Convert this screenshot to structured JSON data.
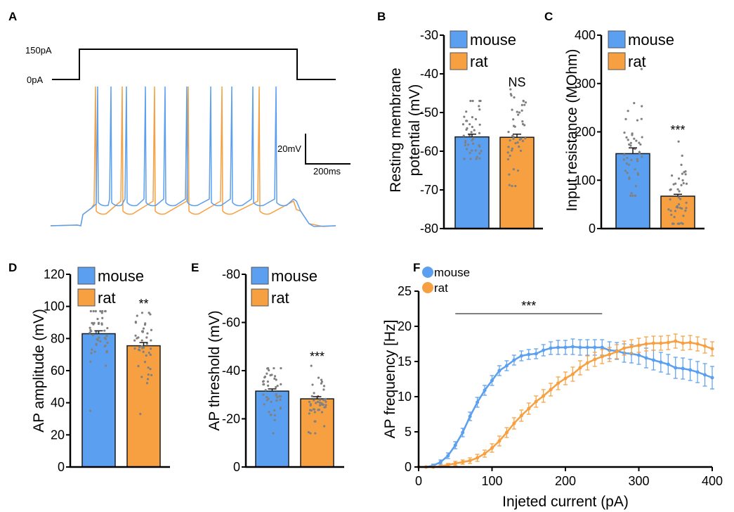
{
  "colors": {
    "mouse": "#5a9ff0",
    "rat": "#f7a041",
    "dots": "#808080",
    "axis": "#000000"
  },
  "panel_labels": {
    "A": "A",
    "B": "B",
    "C": "C",
    "D": "D",
    "E": "E",
    "F": "F"
  },
  "panel_a": {
    "stim_high_label": "150pA",
    "stim_low_label": "0pA",
    "scale_v_label": "20mV",
    "scale_t_label": "200ms"
  },
  "chart_data": [
    {
      "id": "B",
      "type": "bar",
      "ylabel": [
        "Resting membrane",
        "potential (mV)"
      ],
      "ylim": [
        -80,
        -30
      ],
      "yticks": [
        -80,
        -70,
        -60,
        -50,
        -40,
        -30
      ],
      "categories": [
        "mouse",
        "rat"
      ],
      "values": [
        -56.3,
        -56.4
      ],
      "sem": [
        0.7,
        0.8
      ],
      "annotation": "NS",
      "legend": [
        "mouse",
        "rat"
      ],
      "legend_position": "top-left"
    },
    {
      "id": "C",
      "type": "bar",
      "ylabel": [
        "Input resistance (MOhm)"
      ],
      "ylim": [
        0,
        400
      ],
      "yticks": [
        0,
        100,
        200,
        300,
        400
      ],
      "categories": [
        "mouse",
        "rat"
      ],
      "values": [
        155,
        67
      ],
      "sem": [
        12,
        4
      ],
      "annotation": "***",
      "legend": [
        "mouse",
        "rat"
      ],
      "legend_position": "top-left"
    },
    {
      "id": "D",
      "type": "bar",
      "ylabel": [
        "AP amplitude (mV)"
      ],
      "ylim": [
        0,
        120
      ],
      "yticks": [
        0,
        20,
        40,
        60,
        80,
        100,
        120
      ],
      "categories": [
        "mouse",
        "rat"
      ],
      "values": [
        83,
        75.5
      ],
      "sem": [
        1.8,
        2.0
      ],
      "annotation": "**",
      "legend": [
        "mouse",
        "rat"
      ],
      "legend_position": "top-left"
    },
    {
      "id": "E",
      "type": "bar",
      "ylabel": [
        "AP threshold (mV)"
      ],
      "ylim": [
        0,
        -80
      ],
      "yticks": [
        0,
        -20,
        -40,
        -60,
        -80
      ],
      "categories": [
        "mouse",
        "rat"
      ],
      "values": [
        -31.5,
        -28.3
      ],
      "sem": [
        0.9,
        0.9
      ],
      "annotation": "***",
      "legend": [
        "mouse",
        "rat"
      ],
      "legend_position": "top-left"
    },
    {
      "id": "F",
      "type": "line",
      "xlabel": "Injeted current (pA)",
      "ylabel": "AP frequency [Hz]",
      "xlim": [
        0,
        400
      ],
      "ylim": [
        0,
        25
      ],
      "xticks": [
        0,
        100,
        200,
        300,
        400
      ],
      "yticks": [
        0,
        5,
        10,
        15,
        20,
        25
      ],
      "x": [
        0,
        10,
        20,
        30,
        40,
        50,
        60,
        70,
        80,
        90,
        100,
        110,
        120,
        130,
        140,
        150,
        160,
        170,
        180,
        190,
        200,
        210,
        220,
        230,
        240,
        250,
        260,
        270,
        280,
        290,
        300,
        310,
        320,
        330,
        340,
        350,
        360,
        370,
        380,
        390,
        400
      ],
      "series": [
        {
          "name": "mouse",
          "values": [
            0,
            0,
            0.2,
            0.7,
            1.6,
            3.1,
            4.9,
            7.2,
            9.2,
            10.9,
            12.3,
            13.7,
            14.4,
            15.2,
            15.8,
            16.0,
            16.1,
            16.6,
            16.9,
            17.0,
            17.0,
            17.1,
            17.0,
            17.0,
            17.0,
            17.0,
            16.6,
            16.5,
            16.2,
            16.1,
            15.9,
            15.5,
            15.2,
            14.9,
            14.6,
            14.1,
            14.0,
            13.8,
            13.5,
            13.1,
            12.7
          ],
          "sem": [
            0,
            0,
            0.2,
            0.3,
            0.4,
            0.5,
            0.6,
            0.6,
            0.7,
            0.7,
            0.7,
            0.7,
            0.7,
            0.7,
            0.7,
            0.7,
            0.7,
            0.8,
            0.9,
            1.0,
            1.0,
            1.1,
            1.1,
            1.1,
            1.1,
            1.1,
            1.2,
            1.2,
            1.3,
            1.3,
            1.3,
            1.4,
            1.4,
            1.4,
            1.4,
            1.5,
            1.5,
            1.5,
            1.5,
            1.6,
            1.6
          ]
        },
        {
          "name": "rat",
          "values": [
            0,
            0,
            0,
            0.1,
            0.3,
            0.5,
            0.7,
            0.9,
            1.3,
            1.9,
            2.7,
            3.7,
            4.9,
            6.2,
            7.3,
            8.3,
            9.3,
            10.1,
            11.0,
            11.9,
            12.6,
            13.2,
            14.1,
            14.8,
            15.3,
            15.7,
            16.0,
            16.4,
            16.9,
            17.1,
            17.3,
            17.5,
            17.6,
            17.6,
            17.7,
            17.9,
            17.6,
            17.7,
            17.5,
            17.2,
            16.8
          ],
          "sem": [
            0,
            0,
            0,
            0.1,
            0.2,
            0.3,
            0.3,
            0.4,
            0.5,
            0.5,
            0.6,
            0.7,
            0.7,
            0.8,
            0.8,
            0.8,
            0.8,
            0.9,
            0.9,
            0.9,
            0.9,
            1.0,
            1.0,
            1.0,
            1.0,
            1.0,
            1.0,
            1.0,
            1.0,
            1.0,
            1.0,
            1.0,
            1.0,
            1.0,
            1.0,
            1.0,
            1.0,
            1.0,
            1.0,
            1.0,
            1.0
          ]
        }
      ],
      "significance": {
        "label": "***",
        "x_range": [
          50,
          250
        ]
      },
      "legend_position": "top-left"
    }
  ]
}
